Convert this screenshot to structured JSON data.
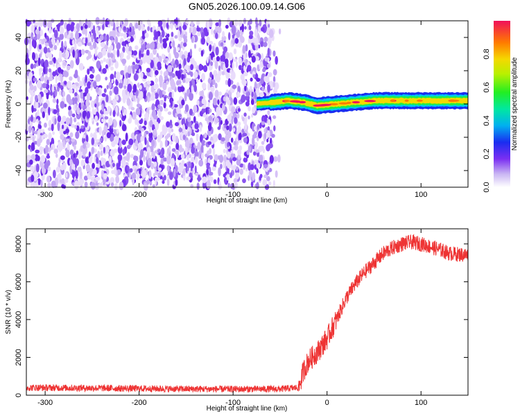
{
  "title": "GN05.2026.100.09.14.G06",
  "chart_data": [
    {
      "type": "heatmap",
      "xlabel": "Height of straight line (km)",
      "ylabel": "Frequency (Hz)",
      "xlim": [
        -320,
        150
      ],
      "ylim": [
        -50,
        50
      ],
      "xticks": [
        -300,
        -200,
        -100,
        0,
        100
      ],
      "yticks": [
        40,
        20,
        0,
        -20,
        -40
      ],
      "noise_region_x": [
        -320,
        -60
      ],
      "signal_start_x": -75,
      "signal_freq_hz": [
        {
          "x": -75,
          "y": 0
        },
        {
          "x": -40,
          "y": 2
        },
        {
          "x": -25,
          "y": 1
        },
        {
          "x": -10,
          "y": -1
        },
        {
          "x": 10,
          "y": 0
        },
        {
          "x": 50,
          "y": 2
        },
        {
          "x": 100,
          "y": 2
        },
        {
          "x": 150,
          "y": 2
        }
      ],
      "colorbar": {
        "label": "Normalized spectral amplitude",
        "range": [
          0,
          1
        ],
        "ticks": [
          "0.0",
          "0.2",
          "0.4",
          "0.6",
          "0.8"
        ]
      }
    },
    {
      "type": "line",
      "xlabel": "Height of straight line (km)",
      "ylabel": "SNR (10 * v/v)",
      "xlim": [
        -320,
        150
      ],
      "ylim": [
        0,
        8800
      ],
      "xticks": [
        -300,
        -200,
        -100,
        0,
        100
      ],
      "yticks": [
        0,
        2000,
        4000,
        6000,
        8000
      ],
      "series": [
        {
          "name": "SNR",
          "color": "#ee3333",
          "x": [
            -320,
            -250,
            -200,
            -150,
            -100,
            -50,
            -30,
            -25,
            -20,
            -10,
            0,
            10,
            20,
            30,
            40,
            50,
            60,
            70,
            80,
            90,
            100,
            110,
            120,
            130,
            140,
            150
          ],
          "y": [
            400,
            380,
            350,
            330,
            320,
            330,
            400,
            1300,
            1800,
            2300,
            3000,
            4000,
            5100,
            5900,
            6500,
            7000,
            7500,
            7800,
            8000,
            8100,
            8000,
            7850,
            7700,
            7500,
            7450,
            7400
          ]
        }
      ]
    }
  ]
}
